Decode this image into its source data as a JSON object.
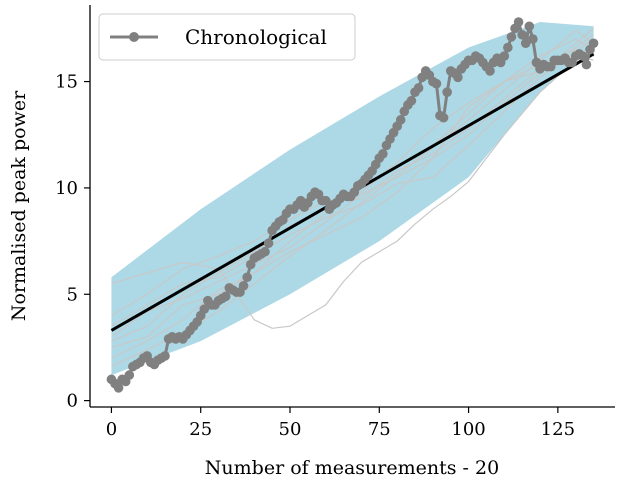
{
  "chart_data": {
    "type": "line",
    "title": "",
    "xlabel": "Number of measurements - 20",
    "ylabel": "Normalised peak power",
    "xlim": [
      -6,
      141
    ],
    "ylim": [
      -0.3,
      18.6
    ],
    "xticks": [
      0,
      25,
      50,
      75,
      100,
      125
    ],
    "yticks": [
      0,
      5,
      10,
      15
    ],
    "grid": false,
    "legend": {
      "placement": "top-left",
      "entries": [
        "Chronological"
      ]
    },
    "colors": {
      "chronological": "#808080",
      "trend": "#000000",
      "band": "#add8e6",
      "other_runs": "#c8c8c8"
    },
    "band": {
      "x": [
        0,
        25,
        50,
        75,
        100,
        120,
        135
      ],
      "upper": [
        5.8,
        9.0,
        11.8,
        14.3,
        16.6,
        17.8,
        17.6
      ],
      "lower": [
        1.2,
        2.8,
        5.0,
        7.5,
        10.5,
        14.5,
        16.8
      ]
    },
    "trend": {
      "x": [
        0,
        135
      ],
      "y": [
        3.3,
        16.3
      ]
    },
    "series": [
      {
        "name": "Chronological",
        "x": [
          0,
          1,
          2,
          3,
          4,
          5,
          6,
          7,
          8,
          9,
          10,
          11,
          12,
          13,
          14,
          15,
          16,
          17,
          18,
          19,
          20,
          21,
          22,
          23,
          24,
          25,
          26,
          27,
          28,
          29,
          30,
          31,
          32,
          33,
          34,
          35,
          36,
          37,
          38,
          39,
          40,
          41,
          42,
          43,
          44,
          45,
          46,
          47,
          48,
          49,
          50,
          51,
          52,
          53,
          54,
          55,
          56,
          57,
          58,
          59,
          60,
          61,
          62,
          63,
          64,
          65,
          66,
          67,
          68,
          69,
          70,
          71,
          72,
          73,
          74,
          75,
          76,
          77,
          78,
          79,
          80,
          81,
          82,
          83,
          84,
          85,
          86,
          87,
          88,
          89,
          90,
          91,
          92,
          93,
          94,
          95,
          96,
          97,
          98,
          99,
          100,
          101,
          102,
          103,
          104,
          105,
          106,
          107,
          108,
          109,
          110,
          111,
          112,
          113,
          114,
          115,
          116,
          117,
          118,
          119,
          120,
          121,
          122,
          123,
          124,
          125,
          126,
          127,
          128,
          129,
          130,
          131,
          132,
          133,
          134,
          135
        ],
        "y": [
          1.0,
          0.8,
          0.6,
          1.0,
          0.9,
          1.2,
          1.6,
          1.7,
          1.8,
          2.0,
          2.1,
          1.8,
          1.7,
          1.9,
          2.0,
          2.1,
          2.9,
          3.0,
          2.9,
          3.0,
          2.9,
          3.1,
          3.3,
          3.5,
          3.7,
          4.0,
          4.3,
          4.7,
          4.5,
          4.5,
          4.7,
          4.8,
          4.9,
          5.3,
          5.2,
          5.1,
          5.1,
          5.4,
          5.8,
          6.4,
          6.7,
          6.8,
          6.9,
          7.0,
          7.4,
          8.0,
          8.2,
          8.4,
          8.5,
          8.8,
          9.0,
          9.0,
          9.2,
          9.4,
          9.1,
          9.3,
          9.6,
          9.8,
          9.7,
          9.4,
          9.4,
          9.0,
          9.2,
          9.3,
          9.5,
          9.7,
          9.6,
          9.6,
          9.8,
          10.1,
          10.2,
          10.4,
          10.6,
          10.8,
          11.1,
          11.4,
          11.6,
          12.0,
          12.3,
          12.6,
          12.9,
          13.2,
          13.6,
          13.9,
          14.1,
          14.5,
          14.7,
          15.2,
          15.5,
          15.3,
          15.0,
          14.9,
          13.4,
          13.3,
          14.5,
          15.5,
          15.4,
          15.2,
          15.6,
          15.8,
          16.0,
          16.0,
          16.2,
          16.1,
          15.9,
          15.7,
          15.5,
          15.9,
          16.1,
          15.9,
          16.2,
          16.6,
          17.1,
          17.5,
          17.8,
          17.2,
          16.8,
          17.6,
          17.0,
          15.9,
          15.6,
          15.8,
          15.7,
          15.7,
          16.0,
          16.0,
          16.0,
          16.1,
          15.9,
          15.9,
          16.2,
          16.3,
          16.2,
          15.8,
          16.5,
          16.8
        ]
      }
    ],
    "other_runs": [
      {
        "x": [
          0,
          10,
          20,
          30,
          35,
          40,
          45,
          50,
          55,
          60,
          65,
          70,
          75,
          80,
          85,
          90,
          95,
          100,
          110,
          120,
          130,
          135
        ],
        "y": [
          5.5,
          6.0,
          6.5,
          6.2,
          5.0,
          3.8,
          3.4,
          3.5,
          4.0,
          4.5,
          5.6,
          6.5,
          7.0,
          7.5,
          8.3,
          9.0,
          9.6,
          10.3,
          12.5,
          14.5,
          16.0,
          16.5
        ]
      },
      {
        "x": [
          0,
          10,
          20,
          30,
          40,
          50,
          60,
          70,
          80,
          90,
          100,
          110,
          120,
          130,
          135
        ],
        "y": [
          2.8,
          3.5,
          5.0,
          6.0,
          7.0,
          8.2,
          9.0,
          9.8,
          11.2,
          12.8,
          14.0,
          15.0,
          15.5,
          16.6,
          17.2
        ]
      },
      {
        "x": [
          0,
          10,
          20,
          30,
          40,
          50,
          60,
          70,
          80,
          90,
          100,
          110,
          120,
          130,
          135
        ],
        "y": [
          2.0,
          2.8,
          3.8,
          5.2,
          6.0,
          7.5,
          8.8,
          10.0,
          11.0,
          12.0,
          13.5,
          15.0,
          16.2,
          17.0,
          16.5
        ]
      },
      {
        "x": [
          0,
          10,
          20,
          30,
          40,
          50,
          60,
          70,
          80,
          90,
          100,
          110,
          120,
          130,
          135
        ],
        "y": [
          4.0,
          5.0,
          6.2,
          6.8,
          7.5,
          8.5,
          9.4,
          9.5,
          10.8,
          11.6,
          12.8,
          14.2,
          15.6,
          16.3,
          16.0
        ]
      },
      {
        "x": [
          0,
          10,
          20,
          30,
          40,
          50,
          60,
          70,
          80,
          90,
          100,
          110,
          120,
          130,
          135
        ],
        "y": [
          3.5,
          4.5,
          5.5,
          5.8,
          6.8,
          7.8,
          8.6,
          9.2,
          10.2,
          10.5,
          12.0,
          13.6,
          15.2,
          16.4,
          17.0
        ]
      },
      {
        "x": [
          0,
          10,
          20,
          30,
          40,
          50,
          60,
          70,
          80,
          90,
          100,
          110,
          120,
          130,
          135
        ],
        "y": [
          1.6,
          2.4,
          3.2,
          4.2,
          5.5,
          6.8,
          8.0,
          9.3,
          10.6,
          11.9,
          13.2,
          14.6,
          16.0,
          17.4,
          16.8
        ]
      },
      {
        "x": [
          0,
          10,
          20,
          30,
          40,
          50,
          60,
          70,
          80,
          90,
          100,
          110,
          120,
          130,
          135
        ],
        "y": [
          3.0,
          4.2,
          4.8,
          5.6,
          6.4,
          7.2,
          8.4,
          9.7,
          10.5,
          11.4,
          12.5,
          14.0,
          15.4,
          16.8,
          17.5
        ]
      },
      {
        "x": [
          0,
          10,
          20,
          30,
          40,
          50,
          60,
          70,
          80,
          90,
          100,
          110,
          120,
          130,
          135
        ],
        "y": [
          2.5,
          3.0,
          4.5,
          5.0,
          6.0,
          7.0,
          7.8,
          8.6,
          9.8,
          11.4,
          13.8,
          15.0,
          15.8,
          16.5,
          16.2
        ]
      }
    ]
  }
}
